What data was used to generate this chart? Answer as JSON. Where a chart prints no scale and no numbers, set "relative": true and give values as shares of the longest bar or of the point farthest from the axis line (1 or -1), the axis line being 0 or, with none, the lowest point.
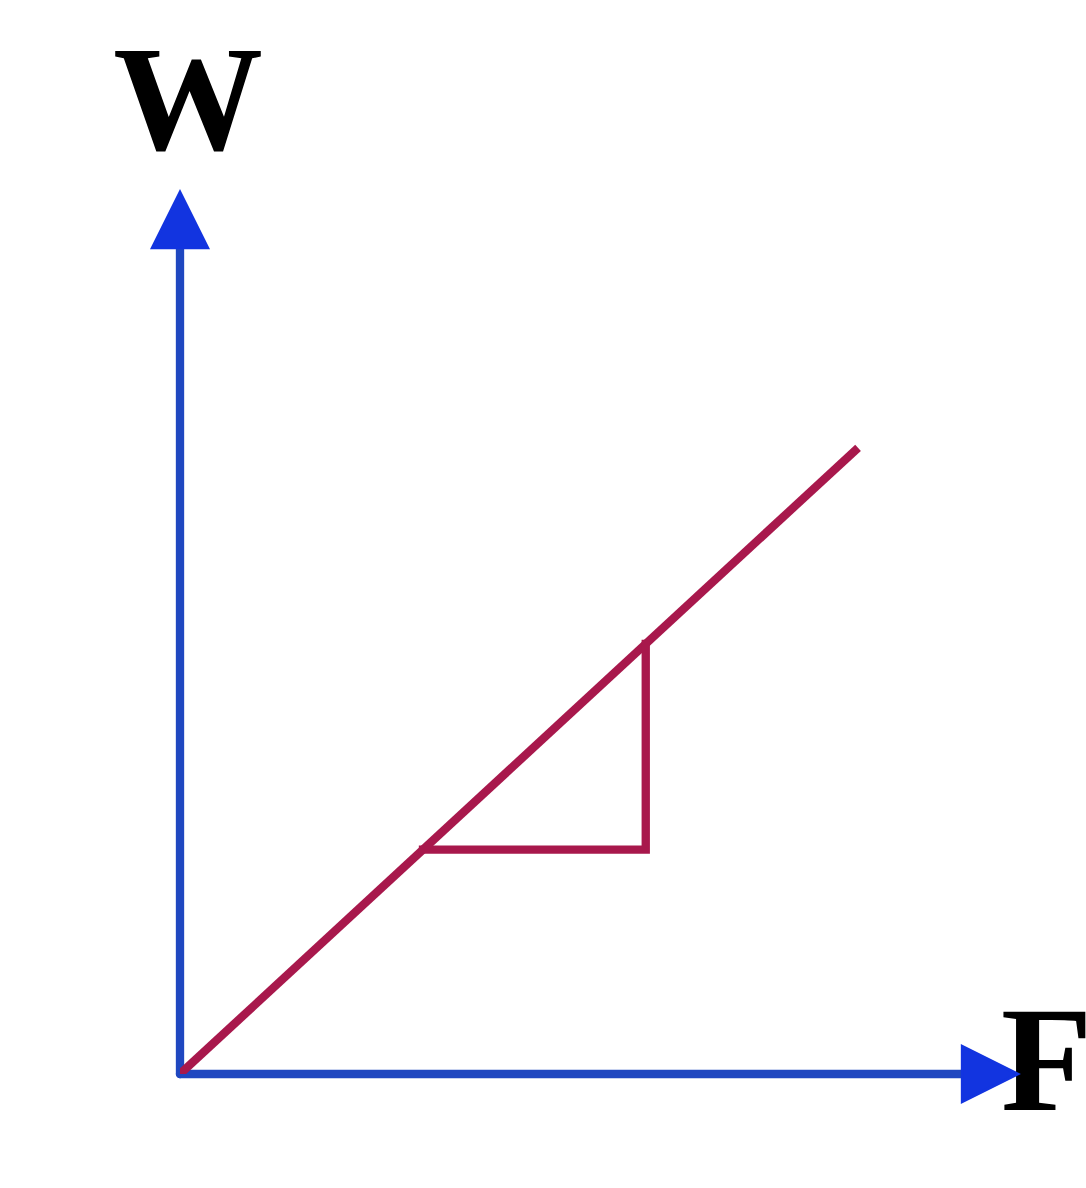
{
  "chart_data": {
    "type": "line",
    "relative": true,
    "xlabel": "F",
    "ylabel": "W",
    "categories": [
      null,
      null
    ],
    "values": [
      0,
      1
    ],
    "color": "#a8184c"
  }
}
